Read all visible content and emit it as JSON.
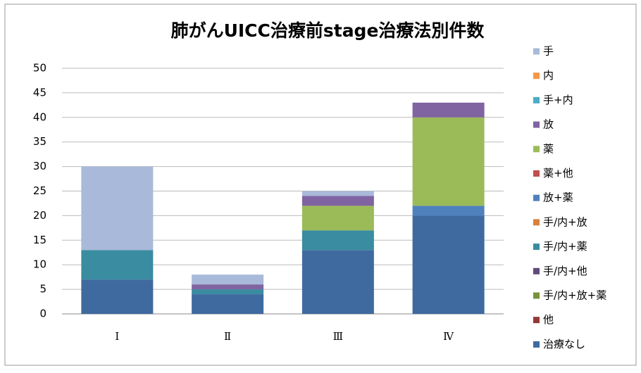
{
  "chart_data": {
    "type": "stacked_bar",
    "title": "肺がんUICC治療前stage治療法別件数",
    "categories": [
      "Ⅰ",
      "Ⅱ",
      "Ⅲ",
      "Ⅳ"
    ],
    "series": [
      {
        "name": "治療なし",
        "color": "#3f6a9f",
        "values": [
          7,
          4,
          13,
          20
        ]
      },
      {
        "name": "他",
        "color": "#953735",
        "values": [
          0,
          0,
          0,
          0
        ]
      },
      {
        "name": "手/内+放+薬",
        "color": "#77933c",
        "values": [
          0,
          0,
          0,
          0
        ]
      },
      {
        "name": "手/内+他",
        "color": "#604a7b",
        "values": [
          0,
          0,
          0,
          0
        ]
      },
      {
        "name": "手/内+薬",
        "color": "#3a8ca0",
        "values": [
          6,
          1,
          4,
          0
        ]
      },
      {
        "name": "手/内+放",
        "color": "#d9803c",
        "values": [
          0,
          0,
          0,
          0
        ]
      },
      {
        "name": "放+薬",
        "color": "#4f81bd",
        "values": [
          0,
          0,
          0,
          2
        ]
      },
      {
        "name": "薬+他",
        "color": "#c0504d",
        "values": [
          0,
          0,
          0,
          0
        ]
      },
      {
        "name": "薬",
        "color": "#9bbb59",
        "values": [
          0,
          0,
          5,
          18
        ]
      },
      {
        "name": "放",
        "color": "#8064a2",
        "values": [
          0,
          1,
          2,
          3
        ]
      },
      {
        "name": "手+内",
        "color": "#4bacc6",
        "values": [
          0,
          0,
          0,
          0
        ]
      },
      {
        "name": "内",
        "color": "#f79646",
        "values": [
          0,
          0,
          0,
          0
        ]
      },
      {
        "name": "手",
        "color": "#a9b9d9",
        "values": [
          17,
          2,
          1,
          0
        ]
      }
    ],
    "ylim": [
      0,
      50
    ],
    "yticks": [
      0,
      5,
      10,
      15,
      20,
      25,
      30,
      35,
      40,
      45,
      50
    ],
    "grid": true,
    "legend": "right"
  }
}
